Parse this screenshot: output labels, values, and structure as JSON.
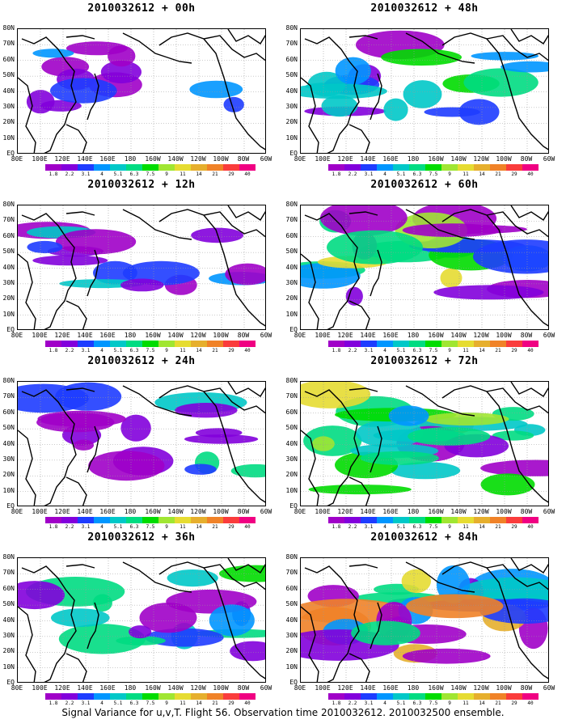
{
  "panels": [
    {
      "title": "2010032612 + 00h",
      "intensity": 0.25
    },
    {
      "title": "2010032612 + 48h",
      "intensity": 0.55
    },
    {
      "title": "2010032612 + 12h",
      "intensity": 0.35
    },
    {
      "title": "2010032612 + 60h",
      "intensity": 0.7
    },
    {
      "title": "2010032612 + 24h",
      "intensity": 0.45
    },
    {
      "title": "2010032612 + 72h",
      "intensity": 0.8
    },
    {
      "title": "2010032612 + 36h",
      "intensity": 0.5
    },
    {
      "title": "2010032612 + 84h",
      "intensity": 0.9
    }
  ],
  "lat_labels": [
    "80N",
    "70N",
    "60N",
    "50N",
    "40N",
    "30N",
    "20N",
    "10N",
    "EQ"
  ],
  "lon_labels": [
    "80E",
    "100E",
    "120E",
    "140E",
    "160E",
    "180",
    "160W",
    "140W",
    "120W",
    "100W",
    "80W",
    "60W"
  ],
  "colorbar": {
    "levels": [
      "1.8",
      "2.2",
      "3.1",
      "4",
      "5.1",
      "6.3",
      "7.5",
      "9",
      "11",
      "14",
      "21",
      "29",
      "40"
    ],
    "colors": [
      "#a000c8",
      "#8200dc",
      "#1e3cff",
      "#0096ff",
      "#00c8c8",
      "#00dc82",
      "#00dc00",
      "#a0e632",
      "#e6dc32",
      "#e6af2d",
      "#f08228",
      "#fa3c3c",
      "#f00082"
    ]
  },
  "footer": "Signal Variance for u,v,T. Flight 56. Observation time 2010032612. 2010032500 ensemble."
}
